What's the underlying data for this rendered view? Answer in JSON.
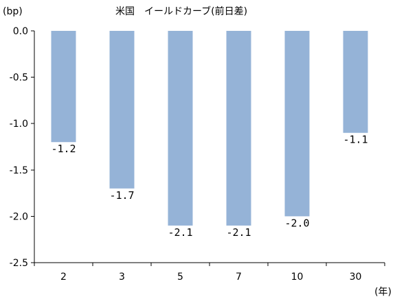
{
  "chart_data": {
    "type": "bar",
    "title": "米国　イールドカーブ(前日差)",
    "ylabel": "(bp)",
    "xlabel": "(年)",
    "categories": [
      "2",
      "3",
      "5",
      "7",
      "10",
      "30"
    ],
    "values": [
      -1.2,
      -1.7,
      -2.1,
      -2.1,
      -2.0,
      -1.1
    ],
    "data_labels": [
      "-1.2",
      "-1.7",
      "-2.1",
      "-2.1",
      "-2.0",
      "-1.1"
    ],
    "yticks": [
      "0.0",
      "-0.5",
      "-1.0",
      "-1.5",
      "-2.0",
      "-2.5"
    ],
    "ylim": [
      -2.5,
      0
    ],
    "bar_color": "#95b3d7",
    "grid": false,
    "legend": "none"
  }
}
